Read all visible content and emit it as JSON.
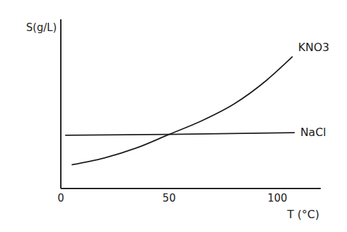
{
  "chart_data": {
    "type": "line",
    "x_label": "T (°C)",
    "y_label": "S(g/L)",
    "xlim": [
      0,
      120
    ],
    "xticks": [
      0,
      50,
      100
    ],
    "ylim": [
      0,
      100
    ],
    "yticks": [],
    "tick_labels": "x",
    "grid": false,
    "series": [
      {
        "name": "KNO3",
        "color": "#1a1a1a",
        "x": [
          5,
          20,
          35,
          50,
          65,
          80,
          95,
          107
        ],
        "values": [
          14,
          18,
          24,
          32,
          40,
          50,
          64,
          78
        ]
      },
      {
        "name": "NaCl",
        "color": "#1a1a1a",
        "x": [
          2,
          50,
          108
        ],
        "values": [
          31.5,
          32,
          33
        ]
      }
    ]
  }
}
